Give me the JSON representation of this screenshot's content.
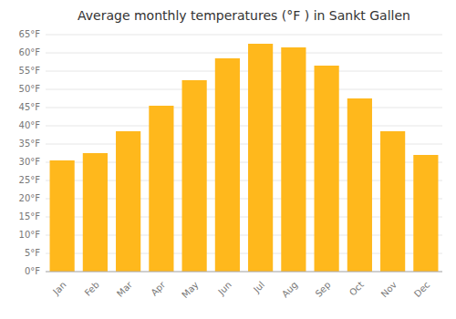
{
  "chart_data": {
    "type": "bar",
    "title": "Average monthly temperatures (°F ) in Sankt Gallen",
    "categories": [
      "Jan",
      "Feb",
      "Mar",
      "Apr",
      "May",
      "Jun",
      "Jul",
      "Aug",
      "Sep",
      "Oct",
      "Nov",
      "Dec"
    ],
    "values": [
      30.5,
      32.5,
      38.5,
      45.5,
      52.5,
      58.5,
      62.5,
      61.5,
      56.5,
      47.5,
      38.5,
      32.0
    ],
    "color": "#FFB81C",
    "ylim": [
      0,
      65
    ],
    "yticks": [
      {
        "value": 0,
        "label": "0°F"
      },
      {
        "value": 5,
        "label": "5°F"
      },
      {
        "value": 10,
        "label": "10°F"
      },
      {
        "value": 15,
        "label": "15°F"
      },
      {
        "value": 20,
        "label": "20°F"
      },
      {
        "value": 25,
        "label": "25°F"
      },
      {
        "value": 30,
        "label": "30°F"
      },
      {
        "value": 35,
        "label": "35°F"
      },
      {
        "value": 40,
        "label": "40°F"
      },
      {
        "value": 45,
        "label": "45°F"
      },
      {
        "value": 50,
        "label": "50°F"
      },
      {
        "value": 55,
        "label": "55°F"
      },
      {
        "value": 60,
        "label": "60°F"
      },
      {
        "value": 65,
        "label": "65°F"
      }
    ],
    "grid": true
  }
}
